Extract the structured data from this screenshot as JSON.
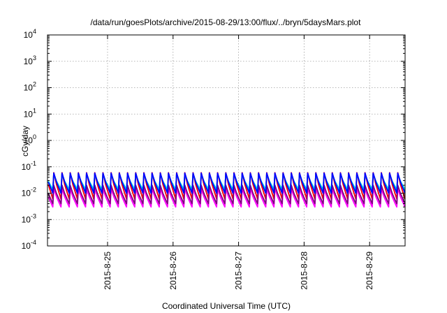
{
  "chart_data": {
    "type": "line",
    "title": "/data/run/goesPlots/archive/2015-08-29/13:00/flux/../bryn/5daysMars.plot",
    "xlabel": "Coordinated Universal Time (UTC)",
    "ylabel": "cGy/day",
    "y_scale": "log",
    "ylim_exponents": [
      -4,
      4
    ],
    "y_ticks": [
      {
        "base": "10",
        "exp": "4"
      },
      {
        "base": "10",
        "exp": "3"
      },
      {
        "base": "10",
        "exp": "2"
      },
      {
        "base": "10",
        "exp": "1"
      },
      {
        "base": "10",
        "exp": "0"
      },
      {
        "base": "10",
        "exp": "-1"
      },
      {
        "base": "10",
        "exp": "-2"
      },
      {
        "base": "10",
        "exp": "-3"
      },
      {
        "base": "10",
        "exp": "-4"
      }
    ],
    "xlim": [
      "2015-08-24 02:00",
      "2015-08-29 13:00"
    ],
    "x_ticks": [
      "2015-8-25",
      "2015-8-26",
      "2015-8-27",
      "2015-8-28",
      "2015-8-29"
    ],
    "grid": true,
    "legend": "none",
    "oscillation_period_hours": 3,
    "series": [
      {
        "color": "#ff0000",
        "trough": 0.006,
        "peak": 0.06
      },
      {
        "color": "#ff00ff",
        "trough": 0.003,
        "peak": 0.015
      },
      {
        "color": "#800080",
        "trough": 0.004,
        "peak": 0.02
      },
      {
        "color": "#009090",
        "trough": 0.012,
        "peak": 0.055
      },
      {
        "color": "#00e0e0",
        "trough": 0.014,
        "peak": 0.05
      },
      {
        "color": "#0000ff",
        "trough": 0.01,
        "peak": 0.058
      }
    ]
  }
}
